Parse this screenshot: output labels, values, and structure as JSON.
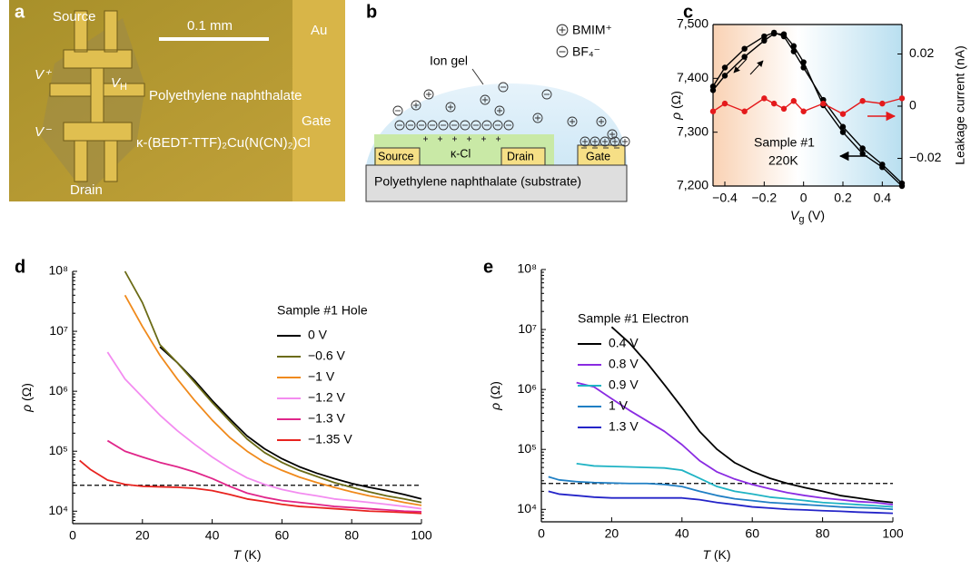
{
  "panel_a": {
    "letter": "a",
    "labels": {
      "source": "Source",
      "scale": "0.1 mm",
      "au": "Au",
      "v_plus": "V⁺",
      "v_h": [
        "V",
        "H"
      ],
      "substrate": "Polyethylene naphthalate",
      "v_minus": "V⁻",
      "crystal": "κ-(BEDT-TTF)₂Cu(N(CN)₂)Cl",
      "drain": "Drain",
      "gate": "Gate"
    }
  },
  "panel_b": {
    "letter": "b",
    "ion_gel": "Ion gel",
    "cation": "BMIM⁺",
    "anion": "BF₄⁻",
    "source": "Source",
    "channel": "κ-Cl",
    "drain": "Drain",
    "gate": "Gate",
    "substrate": "Polyethylene naphthalate (substrate)"
  },
  "chart_data": [
    {
      "panel": "c",
      "type": "line",
      "markers": true,
      "xlabel": [
        "V",
        "g",
        " (V)"
      ],
      "ylabel": [
        "ρ",
        " (Ω)"
      ],
      "y2label": "Leakage current (nA)",
      "annotations": [
        "Sample #1",
        "220K"
      ],
      "x": [
        -0.46,
        -0.4,
        -0.3,
        -0.2,
        -0.15,
        -0.1,
        -0.05,
        0,
        0.1,
        0.2,
        0.3,
        0.4,
        0.5
      ],
      "series": [
        {
          "color": "#000000",
          "values": [
            7378,
            7405,
            7440,
            7470,
            7483,
            7482,
            7460,
            7430,
            7350,
            7300,
            7260,
            7235,
            7200
          ]
        },
        {
          "color": "#000000",
          "values": [
            7385,
            7420,
            7455,
            7478,
            7485,
            7478,
            7450,
            7420,
            7360,
            7310,
            7270,
            7240,
            7205
          ]
        },
        {
          "color": "#e41a1c",
          "axis": "y2",
          "values": [
            -0.002,
            0.001,
            -0.002,
            0.003,
            0.001,
            -0.001,
            0.002,
            -0.002,
            0.001,
            -0.003,
            0.002,
            0.001,
            0.003
          ]
        }
      ],
      "xlim": [
        -0.46,
        0.5
      ],
      "xticks": [
        {
          "value": -0.4,
          "label": "−0.4"
        },
        {
          "value": -0.2,
          "label": "−0.2"
        },
        0,
        0.2,
        0.4
      ],
      "ylim": [
        7200,
        7500
      ],
      "yticks": [
        {
          "value": 7200,
          "label": "7,200"
        },
        {
          "value": 7300,
          "label": "7,300"
        },
        {
          "value": 7400,
          "label": "7,400"
        },
        {
          "value": 7500,
          "label": "7,500"
        }
      ],
      "y2lim": [
        -0.0306,
        0.0313
      ],
      "y2ticks": [
        {
          "value": -0.02,
          "label": "−0.02"
        },
        0,
        0.02
      ]
    },
    {
      "panel": "d",
      "type": "line",
      "yscale": "log",
      "legend_title": "Sample #1 Hole",
      "legend": "upper right",
      "xlabel": [
        "T",
        " (K)"
      ],
      "ylabel": [
        "ρ",
        " (Ω)"
      ],
      "reference_line": 27000,
      "x": [
        2,
        5,
        10,
        15,
        20,
        25,
        30,
        35,
        40,
        45,
        50,
        55,
        60,
        65,
        70,
        75,
        80,
        85,
        90,
        95,
        100
      ],
      "series": [
        {
          "name": "0 V",
          "color": "#000000",
          "values": [
            null,
            null,
            null,
            null,
            null,
            5500000,
            3000000,
            1500000,
            700000,
            350000,
            180000,
            110000,
            75000,
            55000,
            43000,
            35000,
            29000,
            25000,
            22000,
            19000,
            16000
          ]
        },
        {
          "name": "−0.6 V",
          "color": "#6b6b16",
          "values": [
            null,
            null,
            null,
            100000000,
            30000000,
            6000000,
            3000000,
            1400000,
            650000,
            320000,
            160000,
            95000,
            65000,
            48000,
            38000,
            30000,
            25000,
            21000,
            18000,
            16000,
            14000
          ]
        },
        {
          "name": "−1 V",
          "color": "#f08a1c",
          "values": [
            null,
            null,
            null,
            40000000,
            12000000,
            4000000,
            1600000,
            700000,
            330000,
            170000,
            100000,
            65000,
            48000,
            37000,
            30000,
            25000,
            21000,
            18000,
            16000,
            14000,
            12500
          ]
        },
        {
          "name": "−1.2 V",
          "color": "#f38cf0",
          "values": [
            null,
            null,
            4500000,
            1600000,
            800000,
            400000,
            220000,
            130000,
            80000,
            52000,
            36000,
            28000,
            23000,
            20000,
            18000,
            16000,
            15000,
            14000,
            13000,
            12000,
            11000
          ]
        },
        {
          "name": "−1.3 V",
          "color": "#e0268a",
          "values": [
            null,
            null,
            150000,
            100000,
            80000,
            65000,
            55000,
            45000,
            35000,
            26000,
            20000,
            17000,
            15000,
            14000,
            13000,
            12000,
            11500,
            11000,
            10500,
            10000,
            9800
          ]
        },
        {
          "name": "−1.35 V",
          "color": "#e8231f",
          "values": [
            70000,
            50000,
            33000,
            28000,
            26000,
            25500,
            25000,
            24000,
            22000,
            19000,
            16000,
            14500,
            13000,
            12000,
            11500,
            11000,
            10500,
            10000,
            9800,
            9500,
            9200
          ]
        }
      ],
      "xlim": [
        0,
        100
      ],
      "xticks": [
        0,
        20,
        40,
        60,
        80,
        100
      ],
      "ylim": [
        6200,
        100000000
      ],
      "yticks": [
        {
          "value": 10000,
          "label": "10⁴"
        },
        {
          "value": 100000,
          "label": "10⁵"
        },
        {
          "value": 1000000,
          "label": "10⁶"
        },
        {
          "value": 10000000,
          "label": "10⁷"
        },
        {
          "value": 100000000,
          "label": "10⁸"
        }
      ]
    },
    {
      "panel": "e",
      "type": "line",
      "yscale": "log",
      "legend_title": "Sample #1 Electron",
      "legend": "upper right",
      "xlabel": [
        "T",
        " (K)"
      ],
      "ylabel": [
        "ρ",
        " (Ω)"
      ],
      "reference_line": 27000,
      "x": [
        2,
        5,
        10,
        15,
        20,
        25,
        30,
        35,
        40,
        45,
        50,
        55,
        60,
        65,
        70,
        75,
        80,
        85,
        90,
        95,
        100
      ],
      "series": [
        {
          "name": "0.4 V",
          "color": "#000000",
          "values": [
            null,
            null,
            null,
            null,
            11000000,
            6000000,
            2800000,
            1200000,
            500000,
            200000,
            100000,
            60000,
            43000,
            33000,
            27000,
            23000,
            20000,
            17000,
            15500,
            14000,
            13000
          ]
        },
        {
          "name": "0.8 V",
          "color": "#8a2be2",
          "values": [
            null,
            null,
            1300000,
            1100000,
            700000,
            450000,
            300000,
            200000,
            120000,
            65000,
            42000,
            32000,
            26000,
            22000,
            19000,
            17000,
            15500,
            14500,
            13500,
            13000,
            12000
          ]
        },
        {
          "name": "0.9 V",
          "color": "#1fb3c4",
          "values": [
            null,
            null,
            58000,
            53000,
            52000,
            51000,
            50000,
            49000,
            45000,
            33000,
            24000,
            20000,
            18000,
            16000,
            15000,
            14000,
            13000,
            12500,
            12000,
            11500,
            11000
          ]
        },
        {
          "name": "1 V",
          "color": "#1f7fc4",
          "values": [
            35000,
            31000,
            29000,
            28000,
            27500,
            27000,
            27000,
            26000,
            24000,
            20000,
            17000,
            15000,
            14000,
            13000,
            12500,
            12000,
            11500,
            11000,
            10700,
            10500,
            10000
          ]
        },
        {
          "name": "1.3 V",
          "color": "#2424c8",
          "values": [
            20000,
            18000,
            17000,
            16000,
            15500,
            15500,
            15500,
            15500,
            15500,
            14500,
            13000,
            12000,
            11000,
            10500,
            10000,
            9800,
            9500,
            9300,
            9000,
            8800,
            8600
          ]
        }
      ],
      "xlim": [
        0,
        100
      ],
      "xticks": [
        0,
        20,
        40,
        60,
        80,
        100
      ],
      "ylim": [
        6200,
        100000000
      ],
      "yticks": [
        {
          "value": 10000,
          "label": "10⁴"
        },
        {
          "value": 100000,
          "label": "10⁵"
        },
        {
          "value": 1000000,
          "label": "10⁶"
        },
        {
          "value": 10000000,
          "label": "10⁷"
        },
        {
          "value": 100000000,
          "label": "10⁸"
        }
      ]
    }
  ]
}
